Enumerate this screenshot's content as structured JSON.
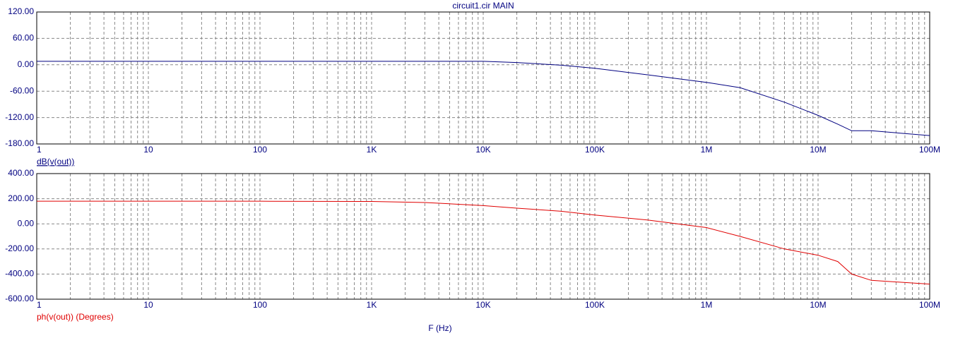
{
  "chart_data": [
    {
      "type": "line",
      "title": "circuit1.cir MAIN",
      "xscale": "log",
      "grid": true,
      "xlim": [
        1,
        100000000
      ],
      "xticks": [
        1,
        10,
        100,
        {
          "value": 1000,
          "label": "1K"
        },
        {
          "value": 10000,
          "label": "10K"
        },
        {
          "value": 100000,
          "label": "100K"
        },
        {
          "value": 1000000,
          "label": "1M"
        },
        {
          "value": 10000000,
          "label": "10M"
        },
        {
          "value": 100000000,
          "label": "100M"
        }
      ],
      "ylim": [
        -180,
        120
      ],
      "yticks": [
        {
          "value": -180,
          "label": "-180.00"
        },
        {
          "value": -120,
          "label": "-120.00"
        },
        {
          "value": -60,
          "label": "-60.00"
        },
        {
          "value": 0,
          "label": "0.00"
        },
        {
          "value": 60,
          "label": "60.00"
        },
        {
          "value": 120,
          "label": "120.00"
        }
      ],
      "x": [
        1,
        10,
        100,
        1000,
        3000,
        10000,
        20000,
        50000,
        100000,
        300000,
        1000000,
        2000000,
        5000000,
        10000000,
        15000000,
        20000000,
        30000000,
        100000000
      ],
      "series": [
        {
          "name": "dB(v(out))",
          "color": "#000080",
          "values": [
            8,
            8,
            8,
            8,
            8,
            8,
            5,
            -1,
            -8,
            -23,
            -40,
            -52,
            -85,
            -115,
            -135,
            -150,
            -150,
            -161
          ]
        }
      ]
    },
    {
      "type": "line",
      "xscale": "log",
      "grid": true,
      "x_label": "F (Hz)",
      "xlim": [
        1,
        100000000
      ],
      "xticks": [
        1,
        10,
        100,
        {
          "value": 1000,
          "label": "1K"
        },
        {
          "value": 10000,
          "label": "10K"
        },
        {
          "value": 100000,
          "label": "100K"
        },
        {
          "value": 1000000,
          "label": "1M"
        },
        {
          "value": 10000000,
          "label": "10M"
        },
        {
          "value": 100000000,
          "label": "100M"
        }
      ],
      "ylim": [
        -600,
        400
      ],
      "yticks": [
        {
          "value": -600,
          "label": "-600.00"
        },
        {
          "value": -400,
          "label": "-400.00"
        },
        {
          "value": -200,
          "label": "-200.00"
        },
        {
          "value": 0,
          "label": "0.00"
        },
        {
          "value": 200,
          "label": "200.00"
        },
        {
          "value": 400,
          "label": "400.00"
        }
      ],
      "x": [
        1,
        10,
        100,
        1000,
        3000,
        10000,
        20000,
        50000,
        100000,
        300000,
        1000000,
        2000000,
        5000000,
        10000000,
        15000000,
        20000000,
        30000000,
        100000000
      ],
      "series": [
        {
          "name": "ph(v(out)) (Degrees)",
          "color": "#e00000",
          "values": [
            180,
            180,
            180,
            178,
            170,
            145,
            125,
            100,
            70,
            30,
            -30,
            -100,
            -200,
            -250,
            -300,
            -400,
            -450,
            -480
          ]
        }
      ]
    }
  ]
}
